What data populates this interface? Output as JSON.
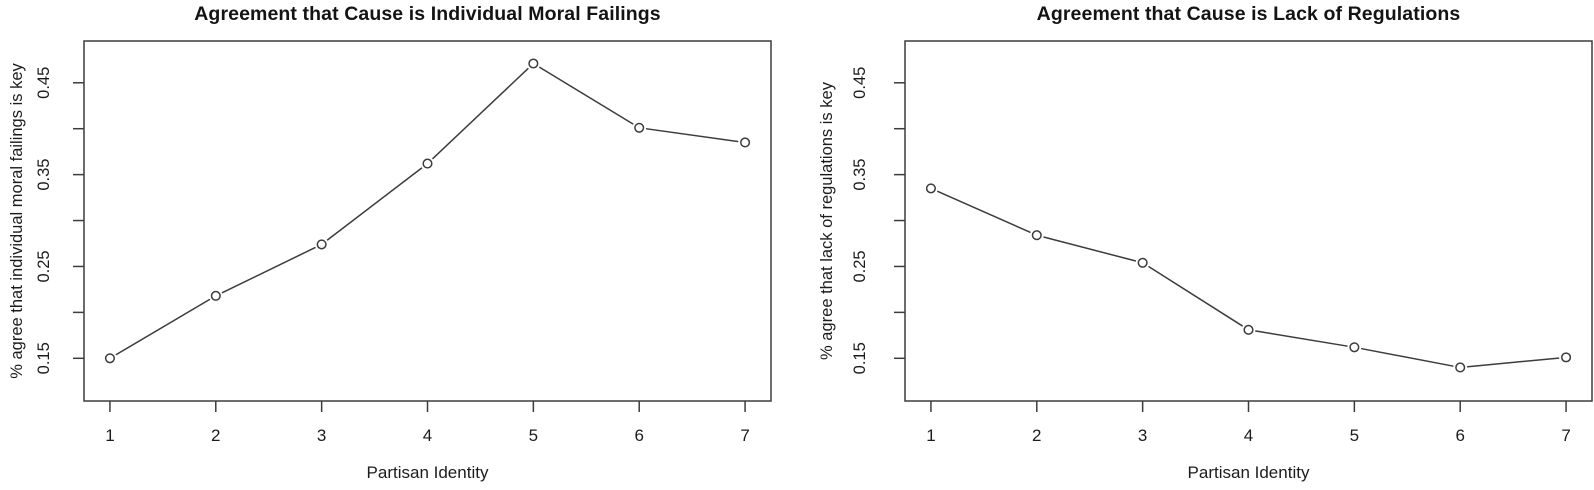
{
  "figure": {
    "background": "#ffffff",
    "ink_color": "#1c1c1c",
    "line_color": "#3c3c3c",
    "marker_fill": "#ffffff"
  },
  "chart_data": [
    {
      "type": "line",
      "title": "Agreement that Cause is Individual Moral Failings",
      "xlabel": "Partisan Identity",
      "ylabel": "% agree that individual moral failings is key",
      "x": [
        1,
        2,
        3,
        4,
        5,
        6,
        7
      ],
      "values": [
        0.15,
        0.218,
        0.274,
        0.362,
        0.471,
        0.401,
        0.385
      ],
      "xlim": [
        0.755,
        7.245
      ],
      "ylim": [
        0.1035,
        0.4955
      ],
      "x_ticks": [
        1,
        2,
        3,
        4,
        5,
        6,
        7
      ],
      "x_tick_labels": [
        "1",
        "2",
        "3",
        "4",
        "5",
        "6",
        "7"
      ],
      "y_ticks_labeled": [
        0.15,
        0.25,
        0.35,
        0.45
      ],
      "y_tick_labels": [
        "0.15",
        "0.25",
        "0.35",
        "0.45"
      ],
      "y_ticks_minor": [
        0.2,
        0.3,
        0.4
      ],
      "marker": "open-circle",
      "line_style": "segments-with-point-gaps",
      "grid": false,
      "legend": null
    },
    {
      "type": "line",
      "title": "Agreement that Cause is Lack of Regulations",
      "xlabel": "Partisan Identity",
      "ylabel": "% agree that lack of regulations is key",
      "x": [
        1,
        2,
        3,
        4,
        5,
        6,
        7
      ],
      "values": [
        0.335,
        0.284,
        0.254,
        0.181,
        0.162,
        0.14,
        0.151
      ],
      "xlim": [
        0.755,
        7.245
      ],
      "ylim": [
        0.1035,
        0.4955
      ],
      "x_ticks": [
        1,
        2,
        3,
        4,
        5,
        6,
        7
      ],
      "x_tick_labels": [
        "1",
        "2",
        "3",
        "4",
        "5",
        "6",
        "7"
      ],
      "y_ticks_labeled": [
        0.15,
        0.25,
        0.35,
        0.45
      ],
      "y_tick_labels": [
        "0.15",
        "0.25",
        "0.35",
        "0.45"
      ],
      "y_ticks_minor": [
        0.2,
        0.3,
        0.4
      ],
      "marker": "open-circle",
      "line_style": "segments-with-point-gaps",
      "grid": false,
      "legend": null
    }
  ]
}
